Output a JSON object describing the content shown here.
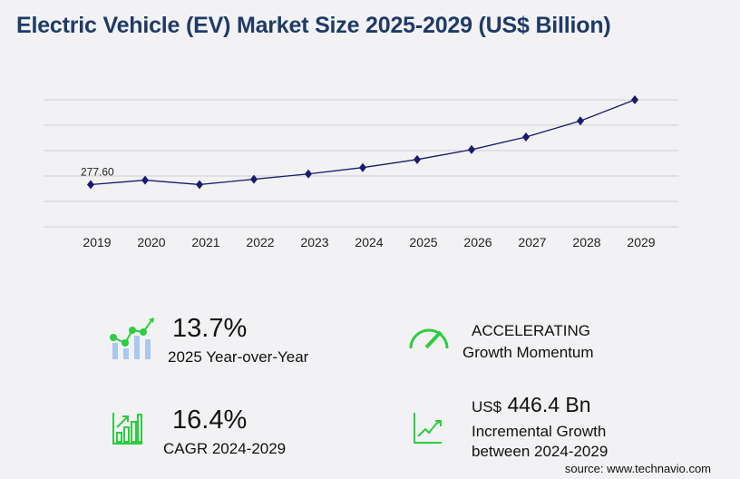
{
  "title": "Electric Vehicle (EV) Market Size 2025-2029 (US$ Billion)",
  "chart_data": {
    "type": "line",
    "categories": [
      "2019",
      "2020",
      "2021",
      "2022",
      "2023",
      "2024",
      "2025",
      "2026",
      "2027",
      "2028",
      "2029"
    ],
    "values": [
      277.6,
      307,
      278,
      313,
      348,
      390,
      443,
      508,
      591,
      697,
      836
    ],
    "data_labels": {
      "2019": "277.60"
    },
    "ylim": [
      0,
      836
    ],
    "grid": true,
    "color": "#1a1a6e"
  },
  "kpis": {
    "yoy": {
      "value": "13.7%",
      "label": "2025 Year-over-Year",
      "icon": "bar-line-growth-icon"
    },
    "momentum": {
      "value": "ACCELERATING",
      "label": "Growth Momentum",
      "icon": "speedometer-icon"
    },
    "cagr": {
      "value": "16.4%",
      "label": "CAGR 2024-2029",
      "icon": "bar-chart-growth-icon"
    },
    "incremental": {
      "prefix": "US$",
      "value": "446.4 Bn",
      "label1": "Incremental Growth",
      "label2": "between 2024-2029",
      "icon": "trend-up-icon"
    }
  },
  "source": "source: www.technavio.com",
  "accent": "#2ecc40"
}
